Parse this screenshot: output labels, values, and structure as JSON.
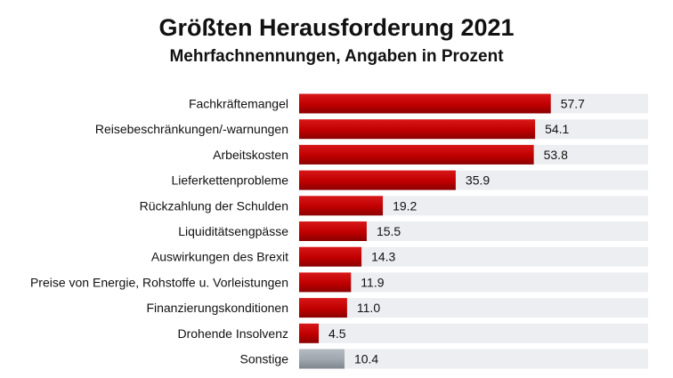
{
  "chart_data": {
    "type": "bar",
    "orientation": "horizontal",
    "title": "Größten Herausforderung 2021",
    "subtitle": "Mehrfachnennungen, Angaben in Prozent",
    "categories": [
      "Fachkräftemangel",
      "Reisebeschränkungen/-warnungen",
      "Arbeitskosten",
      "Lieferkettenprobleme",
      "Rückzahlung der Schulden",
      "Liquiditätsengpässe",
      "Auswirkungen des Brexit",
      "Preise von Energie, Rohstoffe u. Vorleistungen",
      "Finanzierungskonditionen",
      "Drohende Insolvenz",
      "Sonstige"
    ],
    "values": [
      57.7,
      54.1,
      53.8,
      35.9,
      19.2,
      15.5,
      14.3,
      11.9,
      11.0,
      4.5,
      10.4
    ],
    "value_labels": [
      "57.7",
      "54.1",
      "53.8",
      "35.9",
      "19.2",
      "15.5",
      "14.3",
      "11.9",
      "11.0",
      "4.5",
      "10.4"
    ],
    "bar_colors": [
      "#c00000",
      "#c00000",
      "#c00000",
      "#c00000",
      "#c00000",
      "#c00000",
      "#c00000",
      "#c00000",
      "#c00000",
      "#c00000",
      "#9ea5ad"
    ],
    "xlim": [
      0,
      80
    ],
    "grid": false,
    "legend": "none"
  }
}
